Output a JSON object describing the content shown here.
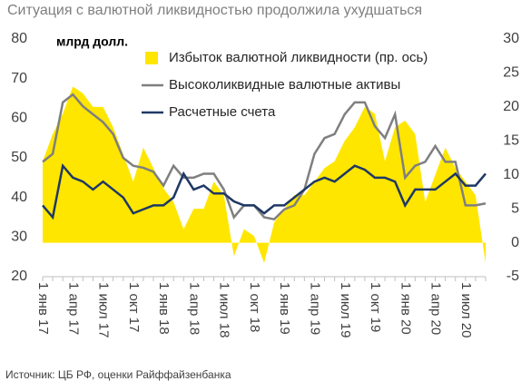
{
  "chart_data": {
    "type": "line",
    "title": "Ситуация с валютной ликвидностью продолжила ухудшаться",
    "ylabel": "млрд долл.",
    "source": "Источник: ЦБ РФ, оценки Райффайзенбанка",
    "categories": [
      "1 янв 17",
      null,
      null,
      "1 апр 17",
      null,
      null,
      "1 июл 17",
      null,
      null,
      "1 окт 17",
      null,
      null,
      "1 янв 18",
      null,
      null,
      "1 апр 18",
      null,
      null,
      "1 июл 18",
      null,
      null,
      "1 окт 18",
      null,
      null,
      "1 янв 19",
      null,
      null,
      "1 апр 19",
      null,
      null,
      "1 июл 19",
      null,
      null,
      "1 окт 19",
      null,
      null,
      "1 янв 20",
      null,
      null,
      "1 апр 20",
      null,
      null,
      "1 июл 20",
      null,
      null
    ],
    "ylim": [
      20,
      80
    ],
    "yticks": [
      20,
      30,
      40,
      50,
      60,
      70,
      80
    ],
    "y2lim": [
      -5,
      30
    ],
    "y2ticks": [
      -5,
      0,
      5,
      10,
      15,
      20,
      25,
      30
    ],
    "legend": "top",
    "series": [
      {
        "name": "Избыток валютной ликвидности (пр. ось)",
        "type": "area",
        "axis": "y2",
        "color": "#ffe600",
        "values": [
          12,
          16,
          19,
          23,
          22,
          20,
          20,
          17,
          13,
          9,
          14,
          11,
          8,
          6,
          2,
          5,
          5,
          9,
          7,
          -2,
          2,
          1,
          -3,
          3,
          5,
          7,
          7,
          9,
          11,
          12,
          15,
          17,
          20,
          19,
          12,
          17,
          18,
          16,
          6,
          10,
          14,
          11,
          9,
          7,
          -3
        ]
      },
      {
        "name": "Высоколиквидные валютные активы",
        "type": "line",
        "color": "#7f7f7f",
        "values": [
          49,
          51,
          64,
          66,
          63,
          61,
          59,
          56,
          50,
          48,
          47.5,
          46.5,
          43,
          48,
          45,
          45,
          46,
          46,
          42,
          35,
          38,
          38,
          35,
          34.5,
          37,
          38,
          42,
          51,
          55,
          56,
          61,
          64,
          64,
          58,
          55,
          61,
          45,
          48,
          49,
          53,
          49,
          49,
          38,
          38,
          38.5
        ]
      },
      {
        "name": "Расчетные счета",
        "type": "line",
        "color": "#1f3864",
        "values": [
          38,
          35,
          48,
          45,
          44,
          42,
          44,
          42,
          40,
          36,
          37,
          38,
          38,
          40,
          46,
          42,
          43,
          41,
          41,
          39,
          38,
          38,
          36,
          38,
          38,
          40,
          42,
          44,
          45,
          44,
          46,
          48,
          47,
          45,
          45,
          44,
          38,
          42,
          42,
          42,
          44,
          46,
          43,
          43,
          46
        ]
      }
    ]
  }
}
